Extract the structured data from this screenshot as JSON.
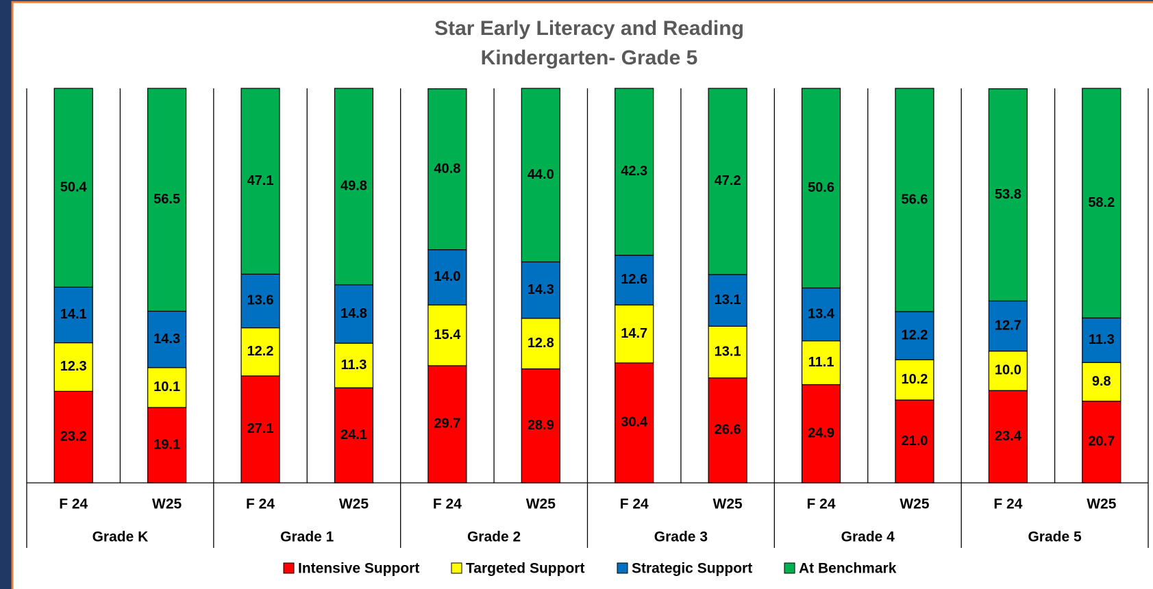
{
  "chart_data": {
    "type": "stacked_bar",
    "title": "Star Early Literacy and Reading",
    "subtitle": "Kindergarten- Grade 5",
    "categories": [
      "F 24",
      "W25",
      "F 24",
      "W25",
      "F 24",
      "W25",
      "F 24",
      "W25",
      "F 24",
      "W25",
      "F 24",
      "W25"
    ],
    "groups": [
      "Grade K",
      "Grade 1",
      "Grade 2",
      "Grade 3",
      "Grade 4",
      "Grade 5"
    ],
    "ylim": [
      0,
      100
    ],
    "legend": "bottom",
    "series": [
      {
        "name": "Intensive Support",
        "color": "#ff0000",
        "values": [
          23.2,
          19.1,
          27.1,
          24.1,
          29.7,
          28.9,
          30.4,
          26.6,
          24.9,
          21.0,
          23.4,
          20.7
        ],
        "value_labels": [
          "23.2",
          "19.1",
          "27.1",
          "24.1",
          "29.7",
          "28.9",
          "30.4",
          "26.6",
          "24.9",
          "21.0",
          "23.4",
          "20.7"
        ]
      },
      {
        "name": "Targeted Support",
        "color": "#ffff00",
        "values": [
          12.3,
          10.1,
          12.2,
          11.3,
          15.4,
          12.8,
          14.7,
          13.1,
          11.1,
          10.2,
          10.0,
          9.8
        ],
        "value_labels": [
          "12.3",
          "10.1",
          "12.2",
          "11.3",
          "15.4",
          "12.8",
          "14.7",
          "13.1",
          "11.1",
          "10.2",
          "10.0",
          "9.8"
        ]
      },
      {
        "name": "Strategic Support",
        "color": "#0070c0",
        "values": [
          14.1,
          14.3,
          13.6,
          14.8,
          14.0,
          14.3,
          12.6,
          13.1,
          13.4,
          12.2,
          12.7,
          11.3
        ],
        "value_labels": [
          "14.1",
          "14.3",
          "13.6",
          "14.8",
          "14.0",
          "14.3",
          "12.6",
          "13.1",
          "13.4",
          "12.2",
          "12.7",
          "11.3"
        ]
      },
      {
        "name": "At Benchmark",
        "color": "#00b050",
        "values": [
          50.4,
          56.5,
          47.1,
          49.8,
          40.8,
          44.0,
          42.3,
          47.2,
          50.6,
          56.6,
          53.8,
          58.2
        ],
        "value_labels": [
          "50.4",
          "56.5",
          "47.1",
          "49.8",
          "40.8",
          "44.0",
          "42.3",
          "47.2",
          "50.6",
          "56.6",
          "53.8",
          "58.2"
        ]
      }
    ]
  }
}
